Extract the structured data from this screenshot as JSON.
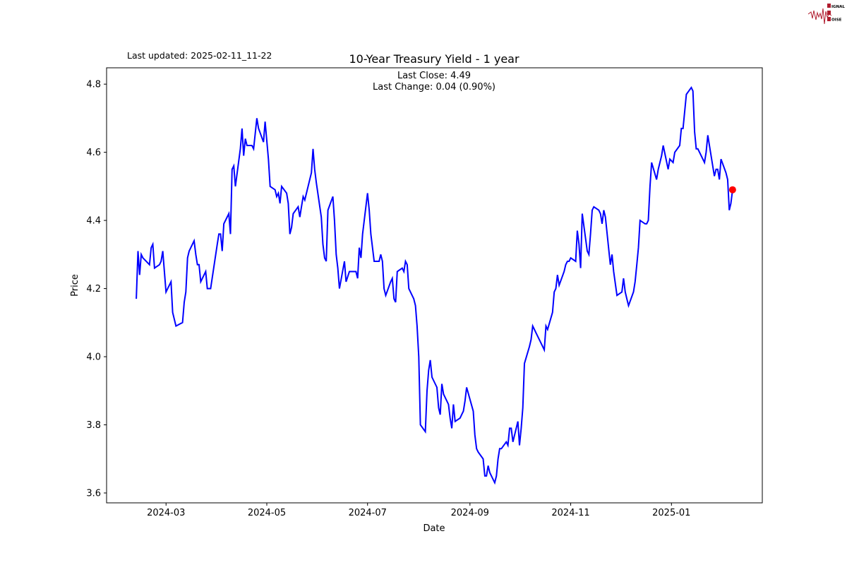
{
  "header": {
    "last_updated": "Last updated: 2025-02-11_11-22"
  },
  "logo": {
    "text": [
      "SIGNAL",
      "2",
      "NOISE"
    ],
    "color": "#b01c2e"
  },
  "chart_data": {
    "type": "line",
    "title": "10-Year Treasury Yield - 1 year",
    "xlabel": "Date",
    "ylabel": "Price",
    "annotations": [
      "Last Close: 4.49",
      "Last Change: 0.04 (0.90%)"
    ],
    "xlim": [
      "2024-01-25",
      "2025-02-25"
    ],
    "ylim": [
      3.571,
      4.848
    ],
    "x_ticks": [
      "2024-03-01",
      "2024-05-01",
      "2024-07-01",
      "2024-09-01",
      "2024-11-01",
      "2025-01-01"
    ],
    "x_tick_labels": [
      "2024-03",
      "2024-05",
      "2024-07",
      "2024-09",
      "2024-11",
      "2025-01"
    ],
    "y_ticks": [
      3.6,
      3.8,
      4.0,
      4.2,
      4.4,
      4.6,
      4.8
    ],
    "y_tick_labels": [
      "3.6",
      "3.8",
      "4.0",
      "4.2",
      "4.4",
      "4.6",
      "4.8"
    ],
    "grid": false,
    "series": [
      {
        "color": "#0000ff",
        "points": [
          [
            "2024-02-12",
            4.17
          ],
          [
            "2024-02-13",
            4.31
          ],
          [
            "2024-02-14",
            4.24
          ],
          [
            "2024-02-15",
            4.3
          ],
          [
            "2024-02-16",
            4.29
          ],
          [
            "2024-02-20",
            4.27
          ],
          [
            "2024-02-21",
            4.32
          ],
          [
            "2024-02-22",
            4.33
          ],
          [
            "2024-02-23",
            4.26
          ],
          [
            "2024-02-26",
            4.27
          ],
          [
            "2024-02-27",
            4.28
          ],
          [
            "2024-02-28",
            4.31
          ],
          [
            "2024-02-29",
            4.25
          ],
          [
            "2024-03-01",
            4.19
          ],
          [
            "2024-03-04",
            4.22
          ],
          [
            "2024-03-05",
            4.13
          ],
          [
            "2024-03-07",
            4.09
          ],
          [
            "2024-03-11",
            4.1
          ],
          [
            "2024-03-12",
            4.16
          ],
          [
            "2024-03-13",
            4.19
          ],
          [
            "2024-03-14",
            4.29
          ],
          [
            "2024-03-15",
            4.31
          ],
          [
            "2024-03-18",
            4.34
          ],
          [
            "2024-03-19",
            4.3
          ],
          [
            "2024-03-20",
            4.27
          ],
          [
            "2024-03-21",
            4.27
          ],
          [
            "2024-03-22",
            4.22
          ],
          [
            "2024-03-25",
            4.25
          ],
          [
            "2024-03-26",
            4.2
          ],
          [
            "2024-03-28",
            4.2
          ],
          [
            "2024-04-01",
            4.33
          ],
          [
            "2024-04-02",
            4.36
          ],
          [
            "2024-04-03",
            4.36
          ],
          [
            "2024-04-04",
            4.31
          ],
          [
            "2024-04-05",
            4.39
          ],
          [
            "2024-04-08",
            4.42
          ],
          [
            "2024-04-09",
            4.36
          ],
          [
            "2024-04-10",
            4.55
          ],
          [
            "2024-04-11",
            4.56
          ],
          [
            "2024-04-12",
            4.5
          ],
          [
            "2024-04-15",
            4.61
          ],
          [
            "2024-04-16",
            4.67
          ],
          [
            "2024-04-17",
            4.59
          ],
          [
            "2024-04-18",
            4.64
          ],
          [
            "2024-04-19",
            4.62
          ],
          [
            "2024-04-22",
            4.62
          ],
          [
            "2024-04-23",
            4.61
          ],
          [
            "2024-04-25",
            4.7
          ],
          [
            "2024-04-26",
            4.67
          ],
          [
            "2024-04-29",
            4.63
          ],
          [
            "2024-04-30",
            4.69
          ],
          [
            "2024-05-02",
            4.58
          ],
          [
            "2024-05-03",
            4.5
          ],
          [
            "2024-05-06",
            4.49
          ],
          [
            "2024-05-07",
            4.47
          ],
          [
            "2024-05-08",
            4.48
          ],
          [
            "2024-05-09",
            4.45
          ],
          [
            "2024-05-10",
            4.5
          ],
          [
            "2024-05-13",
            4.48
          ],
          [
            "2024-05-14",
            4.45
          ],
          [
            "2024-05-15",
            4.36
          ],
          [
            "2024-05-16",
            4.38
          ],
          [
            "2024-05-17",
            4.42
          ],
          [
            "2024-05-20",
            4.44
          ],
          [
            "2024-05-21",
            4.41
          ],
          [
            "2024-05-22",
            4.44
          ],
          [
            "2024-05-23",
            4.47
          ],
          [
            "2024-05-24",
            4.46
          ],
          [
            "2024-05-28",
            4.54
          ],
          [
            "2024-05-29",
            4.61
          ],
          [
            "2024-05-30",
            4.55
          ],
          [
            "2024-05-31",
            4.51
          ],
          [
            "2024-06-03",
            4.41
          ],
          [
            "2024-06-04",
            4.33
          ],
          [
            "2024-06-05",
            4.29
          ],
          [
            "2024-06-06",
            4.28
          ],
          [
            "2024-06-07",
            4.43
          ],
          [
            "2024-06-10",
            4.47
          ],
          [
            "2024-06-11",
            4.4
          ],
          [
            "2024-06-12",
            4.3
          ],
          [
            "2024-06-13",
            4.26
          ],
          [
            "2024-06-14",
            4.2
          ],
          [
            "2024-06-17",
            4.28
          ],
          [
            "2024-06-18",
            4.22
          ],
          [
            "2024-06-20",
            4.25
          ],
          [
            "2024-06-21",
            4.25
          ],
          [
            "2024-06-24",
            4.25
          ],
          [
            "2024-06-25",
            4.23
          ],
          [
            "2024-06-26",
            4.32
          ],
          [
            "2024-06-27",
            4.29
          ],
          [
            "2024-06-28",
            4.36
          ],
          [
            "2024-07-01",
            4.48
          ],
          [
            "2024-07-02",
            4.43
          ],
          [
            "2024-07-03",
            4.36
          ],
          [
            "2024-07-05",
            4.28
          ],
          [
            "2024-07-08",
            4.28
          ],
          [
            "2024-07-09",
            4.3
          ],
          [
            "2024-07-10",
            4.28
          ],
          [
            "2024-07-11",
            4.2
          ],
          [
            "2024-07-12",
            4.18
          ],
          [
            "2024-07-15",
            4.22
          ],
          [
            "2024-07-16",
            4.23
          ],
          [
            "2024-07-17",
            4.17
          ],
          [
            "2024-07-18",
            4.16
          ],
          [
            "2024-07-19",
            4.25
          ],
          [
            "2024-07-22",
            4.26
          ],
          [
            "2024-07-23",
            4.25
          ],
          [
            "2024-07-24",
            4.28
          ],
          [
            "2024-07-25",
            4.27
          ],
          [
            "2024-07-26",
            4.2
          ],
          [
            "2024-07-29",
            4.17
          ],
          [
            "2024-07-30",
            4.15
          ],
          [
            "2024-07-31",
            4.09
          ],
          [
            "2024-08-01",
            4.0
          ],
          [
            "2024-08-02",
            3.8
          ],
          [
            "2024-08-05",
            3.78
          ],
          [
            "2024-08-06",
            3.9
          ],
          [
            "2024-08-07",
            3.96
          ],
          [
            "2024-08-08",
            3.99
          ],
          [
            "2024-08-09",
            3.94
          ],
          [
            "2024-08-12",
            3.91
          ],
          [
            "2024-08-13",
            3.85
          ],
          [
            "2024-08-14",
            3.83
          ],
          [
            "2024-08-15",
            3.92
          ],
          [
            "2024-08-16",
            3.89
          ],
          [
            "2024-08-19",
            3.86
          ],
          [
            "2024-08-20",
            3.82
          ],
          [
            "2024-08-21",
            3.79
          ],
          [
            "2024-08-22",
            3.86
          ],
          [
            "2024-08-23",
            3.81
          ],
          [
            "2024-08-26",
            3.82
          ],
          [
            "2024-08-27",
            3.83
          ],
          [
            "2024-08-28",
            3.84
          ],
          [
            "2024-08-29",
            3.87
          ],
          [
            "2024-08-30",
            3.91
          ],
          [
            "2024-09-03",
            3.84
          ],
          [
            "2024-09-04",
            3.77
          ],
          [
            "2024-09-05",
            3.73
          ],
          [
            "2024-09-06",
            3.72
          ],
          [
            "2024-09-09",
            3.7
          ],
          [
            "2024-09-10",
            3.65
          ],
          [
            "2024-09-11",
            3.65
          ],
          [
            "2024-09-12",
            3.68
          ],
          [
            "2024-09-13",
            3.66
          ],
          [
            "2024-09-16",
            3.63
          ],
          [
            "2024-09-17",
            3.65
          ],
          [
            "2024-09-18",
            3.7
          ],
          [
            "2024-09-19",
            3.73
          ],
          [
            "2024-09-20",
            3.73
          ],
          [
            "2024-09-23",
            3.75
          ],
          [
            "2024-09-24",
            3.74
          ],
          [
            "2024-09-25",
            3.79
          ],
          [
            "2024-09-26",
            3.79
          ],
          [
            "2024-09-27",
            3.75
          ],
          [
            "2024-09-30",
            3.81
          ],
          [
            "2024-10-01",
            3.74
          ],
          [
            "2024-10-02",
            3.79
          ],
          [
            "2024-10-03",
            3.85
          ],
          [
            "2024-10-04",
            3.98
          ],
          [
            "2024-10-07",
            4.03
          ],
          [
            "2024-10-08",
            4.05
          ],
          [
            "2024-10-09",
            4.09
          ],
          [
            "2024-10-10",
            4.08
          ],
          [
            "2024-10-11",
            4.07
          ],
          [
            "2024-10-15",
            4.03
          ],
          [
            "2024-10-16",
            4.02
          ],
          [
            "2024-10-17",
            4.09
          ],
          [
            "2024-10-18",
            4.08
          ],
          [
            "2024-10-21",
            4.13
          ],
          [
            "2024-10-22",
            4.19
          ],
          [
            "2024-10-23",
            4.2
          ],
          [
            "2024-10-24",
            4.24
          ],
          [
            "2024-10-25",
            4.21
          ],
          [
            "2024-10-28",
            4.25
          ],
          [
            "2024-10-29",
            4.27
          ],
          [
            "2024-10-30",
            4.28
          ],
          [
            "2024-10-31",
            4.28
          ],
          [
            "2024-11-01",
            4.29
          ],
          [
            "2024-11-04",
            4.28
          ],
          [
            "2024-11-05",
            4.37
          ],
          [
            "2024-11-06",
            4.33
          ],
          [
            "2024-11-07",
            4.26
          ],
          [
            "2024-11-08",
            4.42
          ],
          [
            "2024-11-11",
            4.31
          ],
          [
            "2024-11-12",
            4.3
          ],
          [
            "2024-11-13",
            4.36
          ],
          [
            "2024-11-14",
            4.43
          ],
          [
            "2024-11-15",
            4.44
          ],
          [
            "2024-11-18",
            4.43
          ],
          [
            "2024-11-19",
            4.42
          ],
          [
            "2024-11-20",
            4.39
          ],
          [
            "2024-11-21",
            4.43
          ],
          [
            "2024-11-22",
            4.41
          ],
          [
            "2024-11-25",
            4.27
          ],
          [
            "2024-11-26",
            4.3
          ],
          [
            "2024-11-27",
            4.25
          ],
          [
            "2024-11-29",
            4.18
          ],
          [
            "2024-12-02",
            4.19
          ],
          [
            "2024-12-03",
            4.23
          ],
          [
            "2024-12-04",
            4.19
          ],
          [
            "2024-12-05",
            4.17
          ],
          [
            "2024-12-06",
            4.15
          ],
          [
            "2024-12-09",
            4.19
          ],
          [
            "2024-12-10",
            4.22
          ],
          [
            "2024-12-11",
            4.27
          ],
          [
            "2024-12-12",
            4.32
          ],
          [
            "2024-12-13",
            4.4
          ],
          [
            "2024-12-16",
            4.39
          ],
          [
            "2024-12-17",
            4.39
          ],
          [
            "2024-12-18",
            4.4
          ],
          [
            "2024-12-19",
            4.5
          ],
          [
            "2024-12-20",
            4.57
          ],
          [
            "2024-12-23",
            4.52
          ],
          [
            "2024-12-24",
            4.55
          ],
          [
            "2024-12-26",
            4.59
          ],
          [
            "2024-12-27",
            4.62
          ],
          [
            "2024-12-30",
            4.55
          ],
          [
            "2024-12-31",
            4.58
          ],
          [
            "2025-01-02",
            4.57
          ],
          [
            "2025-01-03",
            4.6
          ],
          [
            "2025-01-06",
            4.62
          ],
          [
            "2025-01-07",
            4.67
          ],
          [
            "2025-01-08",
            4.67
          ],
          [
            "2025-01-10",
            4.77
          ],
          [
            "2025-01-13",
            4.79
          ],
          [
            "2025-01-14",
            4.78
          ],
          [
            "2025-01-15",
            4.66
          ],
          [
            "2025-01-16",
            4.61
          ],
          [
            "2025-01-17",
            4.61
          ],
          [
            "2025-01-21",
            4.57
          ],
          [
            "2025-01-22",
            4.6
          ],
          [
            "2025-01-23",
            4.65
          ],
          [
            "2025-01-24",
            4.62
          ],
          [
            "2025-01-27",
            4.53
          ],
          [
            "2025-01-28",
            4.55
          ],
          [
            "2025-01-29",
            4.55
          ],
          [
            "2025-01-30",
            4.52
          ],
          [
            "2025-01-31",
            4.58
          ],
          [
            "2025-02-03",
            4.54
          ],
          [
            "2025-02-04",
            4.52
          ],
          [
            "2025-02-05",
            4.43
          ],
          [
            "2025-02-06",
            4.45
          ],
          [
            "2025-02-07",
            4.49
          ]
        ]
      }
    ],
    "last_point": {
      "date": "2025-02-07",
      "value": 4.49,
      "color": "#ff0000"
    }
  }
}
